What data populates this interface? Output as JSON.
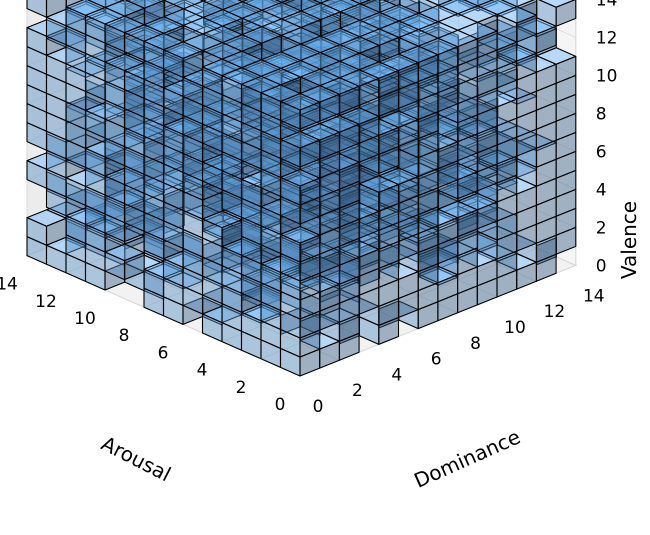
{
  "chart_data": {
    "type": "voxels-3d",
    "title": "",
    "axes": {
      "x": {
        "label": "Arousal",
        "range": [
          0,
          14
        ],
        "ticks": [
          0,
          2,
          4,
          6,
          8,
          10,
          12,
          14
        ]
      },
      "y": {
        "label": "Dominance",
        "range": [
          0,
          14
        ],
        "ticks": [
          0,
          2,
          4,
          6,
          8,
          10,
          12,
          14
        ]
      },
      "z": {
        "label": "Valence",
        "range": [
          0,
          14
        ],
        "ticks": [
          0,
          2,
          4,
          6,
          8,
          10,
          12,
          14
        ]
      }
    },
    "grid": true,
    "voxel_size": 1,
    "face_color": "#5b9bd5",
    "edge_color": "#000000",
    "fill_rule": "approximate: cells of the 14x14x14 Arousal x Dominance x Valence grid are mostly filled, with interior gaps",
    "filled_fraction_estimate": 0.78
  }
}
